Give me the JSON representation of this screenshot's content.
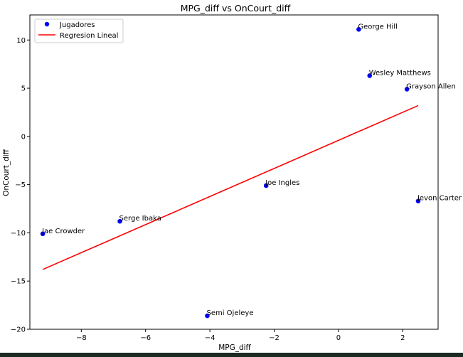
{
  "chart_data": {
    "type": "scatter",
    "title": "MPG_diff vs OnCourt_diff",
    "xlabel": "MPG_diff",
    "ylabel": "OnCourt_diff",
    "xlim": [
      -9.6,
      3.1
    ],
    "ylim": [
      -20.0,
      12.6
    ],
    "xticks": [
      -8,
      -6,
      -4,
      -2,
      0,
      2
    ],
    "yticks": [
      -20,
      -15,
      -10,
      -5,
      0,
      5,
      10
    ],
    "series": [
      {
        "name": "Jugadores",
        "kind": "scatter",
        "color": "#0000ff",
        "points": [
          {
            "label": "George Hill",
            "x": 0.63,
            "y": 11.1
          },
          {
            "label": "Wesley Matthews",
            "x": 0.97,
            "y": 6.3
          },
          {
            "label": "Grayson Allen",
            "x": 2.13,
            "y": 4.9
          },
          {
            "label": "Joe Ingles",
            "x": -2.25,
            "y": -5.1
          },
          {
            "label": "Jevon Carter",
            "x": 2.48,
            "y": -6.7
          },
          {
            "label": "Serge Ibaka",
            "x": -6.8,
            "y": -8.8
          },
          {
            "label": "Jae Crowder",
            "x": -9.2,
            "y": -10.1
          },
          {
            "label": "Semi Ojeleye",
            "x": -4.08,
            "y": -18.6
          }
        ]
      },
      {
        "name": "Regresion Lineal",
        "kind": "line",
        "color": "#ff0000",
        "x": [
          -9.2,
          2.48
        ],
        "y": [
          -13.8,
          3.2
        ]
      }
    ],
    "legend": "upper-left"
  }
}
